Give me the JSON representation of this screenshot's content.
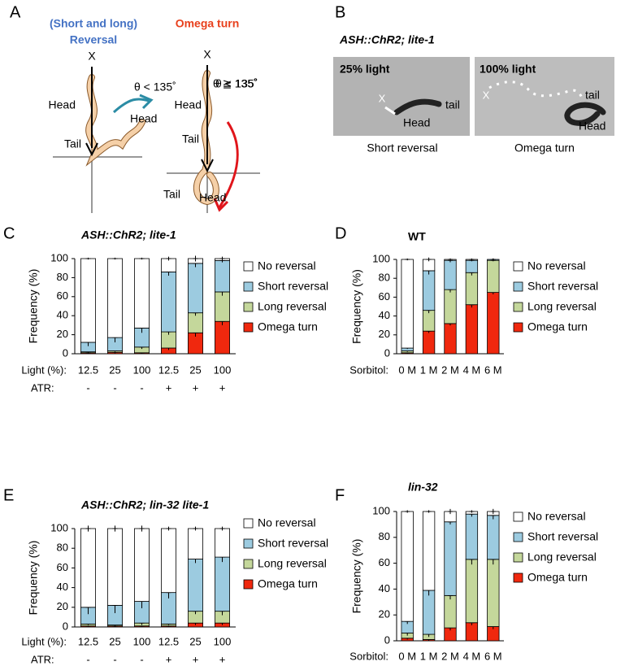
{
  "panel_labels": [
    "A",
    "B",
    "C",
    "D",
    "E",
    "F"
  ],
  "panel_a": {
    "reversal_title": [
      "(Short and long)",
      "Reversal"
    ],
    "omega_title": "Omega turn",
    "start_mark": "X",
    "head": "Head",
    "tail": "Tail",
    "angle_reversal": "θ < 135˚",
    "angle_omega": "θ ≧ 135˚"
  },
  "panel_b": {
    "title": "ASH::ChR2; lite-1",
    "images": [
      {
        "light": "25% light",
        "start": "X",
        "head": "Head",
        "tail": "tail",
        "caption": "Short reversal"
      },
      {
        "light": "100% light",
        "start": "X",
        "head": "Head",
        "tail": "tail",
        "caption": "Omega turn"
      }
    ]
  },
  "chart_data": [
    {
      "type": "stacked_bar",
      "title": "ASH::ChR2; lite-1",
      "title_style": "bold-italic",
      "y_label": "Frequency (%)",
      "category_label": "Light (%):",
      "categories": [
        "12.5",
        "25",
        "100",
        "12.5",
        "25",
        "100"
      ],
      "category2_label": "ATR:",
      "categories2": [
        "-",
        "-",
        "-",
        "+",
        "+",
        "+"
      ],
      "ylim": [
        0,
        100
      ],
      "yticks": [
        0,
        20,
        40,
        60,
        80,
        100
      ],
      "series": [
        {
          "name": "Omega turn",
          "color": "#f0280e",
          "values": [
            1,
            1.5,
            1,
            6,
            22,
            34
          ],
          "errors": [
            1,
            1,
            1,
            2,
            4,
            4
          ]
        },
        {
          "name": "Long reversal",
          "color": "#c4d79b",
          "values": [
            1,
            1.5,
            6,
            17,
            21,
            31
          ],
          "errors": [
            1,
            1,
            2,
            3,
            3,
            4
          ]
        },
        {
          "name": "Short reversal",
          "color": "#9ccbe0",
          "values": [
            10,
            14,
            20,
            63,
            52,
            33
          ],
          "errors": [
            4,
            5,
            5,
            4,
            4,
            2
          ]
        },
        {
          "name": "No reversal",
          "color": "#ffffff",
          "values": [
            88,
            83,
            73,
            14,
            5,
            2
          ],
          "errors": [
            1,
            1,
            1,
            2,
            3,
            2
          ]
        }
      ]
    },
    {
      "type": "stacked_bar",
      "title": "WT",
      "title_style": "bold",
      "y_label": "Frequency (%)",
      "category_label": "Sorbitol:",
      "categories": [
        "0 M",
        "1 M",
        "2 M",
        "4 M",
        "6 M"
      ],
      "ylim": [
        0,
        100
      ],
      "yticks": [
        0,
        20,
        40,
        60,
        80,
        100
      ],
      "series": [
        {
          "name": "Omega turn",
          "color": "#f0280e",
          "values": [
            1,
            24,
            32,
            52,
            65
          ],
          "errors": [
            1,
            2,
            2,
            3,
            2
          ]
        },
        {
          "name": "Long reversal",
          "color": "#c4d79b",
          "values": [
            2,
            22,
            36,
            34,
            34
          ],
          "errors": [
            1,
            3,
            3,
            3,
            1
          ]
        },
        {
          "name": "Short reversal",
          "color": "#9ccbe0",
          "values": [
            3,
            42,
            31,
            13,
            1
          ],
          "errors": [
            1,
            4,
            2,
            1,
            1
          ]
        },
        {
          "name": "No reversal",
          "color": "#ffffff",
          "values": [
            94,
            12,
            1,
            1,
            0
          ],
          "errors": [
            1,
            2,
            1,
            1,
            1
          ]
        }
      ]
    },
    {
      "type": "stacked_bar",
      "title": "ASH::ChR2; lin-32 lite-1",
      "title_style": "bold-italic",
      "y_label": "Frequency (%)",
      "category_label": "Light (%):",
      "categories": [
        "12.5",
        "25",
        "100",
        "12.5",
        "25",
        "100"
      ],
      "category2_label": "ATR:",
      "categories2": [
        "-",
        "-",
        "-",
        "+",
        "+",
        "+"
      ],
      "ylim": [
        0,
        100
      ],
      "yticks": [
        0,
        20,
        40,
        60,
        80,
        100
      ],
      "series": [
        {
          "name": "Omega turn",
          "color": "#f0280e",
          "values": [
            1,
            1,
            1,
            1,
            4,
            4
          ],
          "errors": [
            1,
            1,
            1,
            1,
            2,
            2
          ]
        },
        {
          "name": "Long reversal",
          "color": "#c4d79b",
          "values": [
            2,
            1,
            3,
            2,
            12,
            12
          ],
          "errors": [
            1,
            1,
            2,
            1,
            3,
            4
          ]
        },
        {
          "name": "Short reversal",
          "color": "#9ccbe0",
          "values": [
            17,
            20,
            22,
            32,
            53,
            55
          ],
          "errors": [
            7,
            8,
            7,
            6,
            4,
            5
          ]
        },
        {
          "name": "No reversal",
          "color": "#ffffff",
          "values": [
            80,
            78,
            74,
            65,
            31,
            29
          ],
          "errors": [
            3,
            3,
            3,
            2,
            2,
            2
          ]
        }
      ]
    },
    {
      "type": "stacked_bar",
      "title": "lin-32",
      "title_style": "bold-italic",
      "y_label": "Frequency (%)",
      "category_label": "Sorbitol:",
      "categories": [
        "0 M",
        "1 M",
        "2 M",
        "4 M",
        "6 M"
      ],
      "ylim": [
        0,
        100
      ],
      "yticks": [
        0,
        20,
        40,
        60,
        80,
        100
      ],
      "series": [
        {
          "name": "Omega turn",
          "color": "#f0280e",
          "values": [
            2,
            1,
            10,
            14,
            11
          ],
          "errors": [
            1,
            1,
            2,
            2,
            2
          ]
        },
        {
          "name": "Long reversal",
          "color": "#c4d79b",
          "values": [
            4,
            4,
            25,
            49,
            52
          ],
          "errors": [
            2,
            2,
            3,
            4,
            4
          ]
        },
        {
          "name": "Short reversal",
          "color": "#9ccbe0",
          "values": [
            9,
            34,
            57,
            35,
            34
          ],
          "errors": [
            2,
            4,
            2,
            2,
            3
          ]
        },
        {
          "name": "No reversal",
          "color": "#ffffff",
          "values": [
            85,
            61,
            8,
            2,
            3
          ],
          "errors": [
            1,
            1,
            2,
            1,
            2
          ]
        }
      ]
    }
  ]
}
